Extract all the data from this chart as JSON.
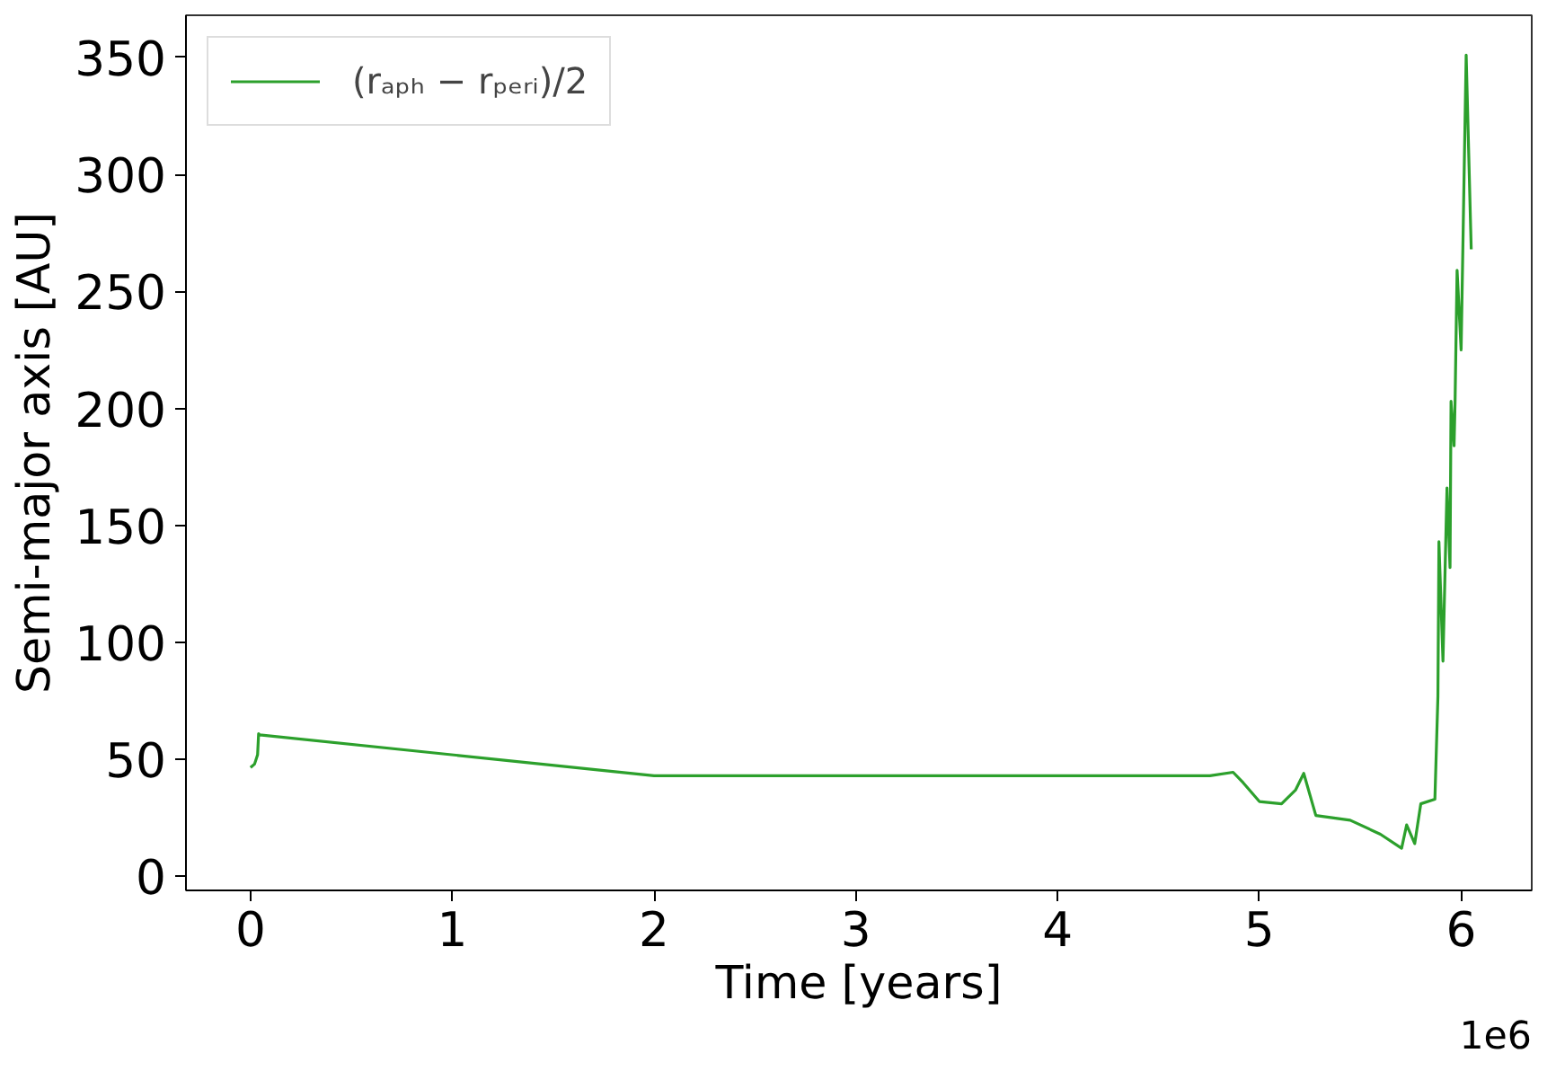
{
  "chart_data": {
    "type": "line",
    "xlabel": "Time [years]",
    "ylabel": "Semi-major axis [AU]",
    "xlim": [
      -0.32,
      6.35
    ],
    "ylim": [
      -6,
      368
    ],
    "xticks": [
      0,
      1,
      2,
      3,
      4,
      5,
      6
    ],
    "yticks": [
      0,
      50,
      100,
      150,
      200,
      250,
      300,
      350
    ],
    "annotations": [
      "1e6"
    ],
    "grid": false,
    "legend": "top left",
    "marker": "none",
    "line_style": "solid",
    "series": [
      {
        "name": "(rₐₚₕ − rₚₑᵣᵢ)/2",
        "color": "#2ca02c",
        "x": [
          0,
          0.02,
          0.035,
          0.04,
          0.045,
          2.0,
          3.0,
          4.0,
          4.755,
          4.87,
          4.92,
          5.0,
          5.11,
          5.18,
          5.22,
          5.28,
          5.45,
          5.6,
          5.705,
          5.73,
          5.77,
          5.8,
          5.87,
          5.885,
          5.89,
          5.91,
          5.93,
          5.945,
          5.95,
          5.965,
          5.97,
          5.98,
          6.0,
          6.025,
          6.05
        ],
        "values": [
          46.5,
          48,
          52,
          61,
          60.5,
          43,
          43,
          43,
          43,
          44.5,
          40,
          32,
          31,
          37,
          44,
          26,
          24,
          18,
          12,
          22,
          14,
          31,
          33,
          77,
          143,
          92,
          166,
          132,
          203,
          184,
          203,
          259,
          225,
          351,
          268
        ]
      }
    ]
  }
}
